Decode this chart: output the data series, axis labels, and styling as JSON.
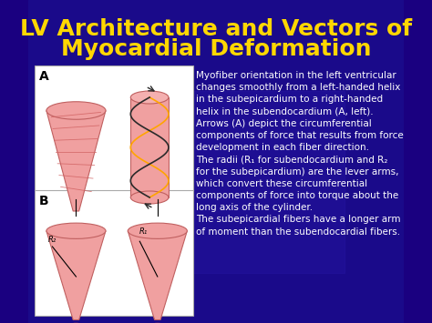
{
  "title_line1": "LV Architecture and Vectors of",
  "title_line2": "Myocardial Deformation",
  "title_color": "#FFD700",
  "title_fontsize": 18,
  "bg_color_top": "#1a0080",
  "bg_color_bottom": "#2a2090",
  "panel_bg": "#ffffff",
  "label_A": "A",
  "label_B": "B",
  "body_text": "Myofiber orientation in the left ventricular\nchanges smoothly from a left-handed helix\nin the subepicardium to a right-handed\nhelix in the subendocardium (A, left).\nArrows (A) depict the circumferential\ncomponents of force that results from force\ndevelopment in each fiber direction.\nThe radii (R₁ for subendocardium and R₂\nfor the subepicardium) are the lever arms,\nwhich convert these circumferential\ncomponents of force into torque about the\nlong axis of the cylinder.\nThe subepicardial fibers have a longer arm\nof moment than the subendocardial fibers.",
  "text_color": "#ffffff",
  "text_fontsize": 7.5,
  "image_placeholder_color": "#f4a0a0",
  "heart_outline": "#c06060"
}
